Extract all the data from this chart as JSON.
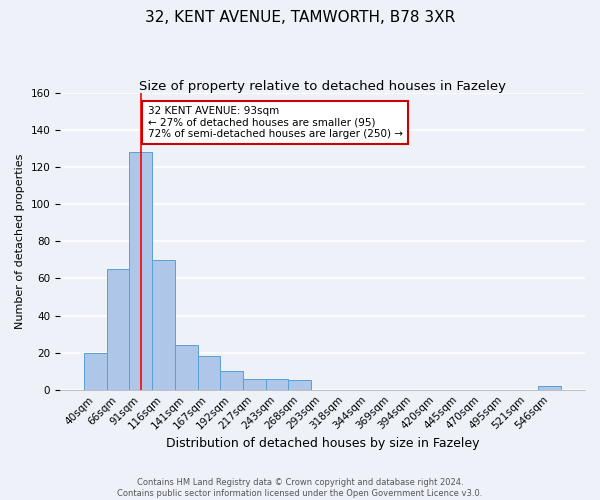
{
  "title": "32, KENT AVENUE, TAMWORTH, B78 3XR",
  "subtitle": "Size of property relative to detached houses in Fazeley",
  "xlabel": "Distribution of detached houses by size in Fazeley",
  "ylabel": "Number of detached properties",
  "bar_labels": [
    "40sqm",
    "66sqm",
    "91sqm",
    "116sqm",
    "141sqm",
    "167sqm",
    "192sqm",
    "217sqm",
    "243sqm",
    "268sqm",
    "293sqm",
    "318sqm",
    "344sqm",
    "369sqm",
    "394sqm",
    "420sqm",
    "445sqm",
    "470sqm",
    "495sqm",
    "521sqm",
    "546sqm"
  ],
  "bar_heights": [
    20,
    65,
    128,
    70,
    24,
    18,
    10,
    6,
    6,
    5,
    0,
    0,
    0,
    0,
    0,
    0,
    0,
    0,
    0,
    0,
    2
  ],
  "bar_color": "#aec6e8",
  "bar_edge_color": "#5a9fd4",
  "red_line_x": 2,
  "annotation_text": "32 KENT AVENUE: 93sqm\n← 27% of detached houses are smaller (95)\n72% of semi-detached houses are larger (250) →",
  "annotation_box_color": "#ffffff",
  "annotation_box_edge_color": "#cc0000",
  "ylim": [
    0,
    160
  ],
  "yticks": [
    0,
    20,
    40,
    60,
    80,
    100,
    120,
    140,
    160
  ],
  "background_color": "#eef2f8",
  "footer_text": "Contains HM Land Registry data © Crown copyright and database right 2024.\nContains public sector information licensed under the Open Government Licence v3.0.",
  "title_fontsize": 11,
  "subtitle_fontsize": 9.5,
  "xlabel_fontsize": 9,
  "ylabel_fontsize": 8,
  "tick_fontsize": 7.5,
  "annotation_fontsize": 7.5,
  "footer_fontsize": 6
}
